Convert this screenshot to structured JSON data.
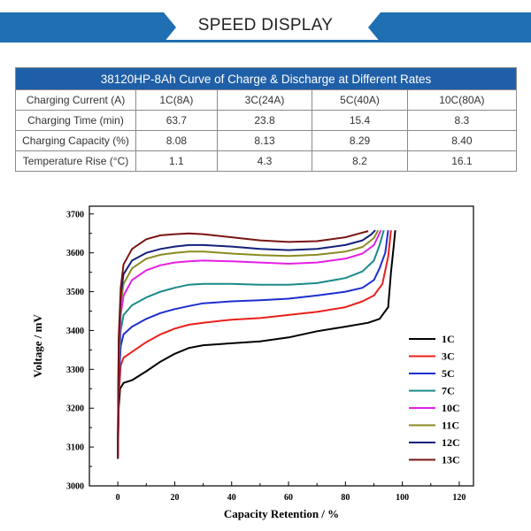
{
  "banner": {
    "title": "SPEED DISPLAY",
    "color": "#1f6fb2"
  },
  "table": {
    "title": "38120HP-8Ah Curve of Charge & Discharge at Different Rates",
    "header_color": "#1f5fa8",
    "rows": [
      {
        "label": "Charging Current (A)",
        "values": [
          "1C(8A)",
          "3C(24A)",
          "5C(40A)",
          "10C(80A)"
        ]
      },
      {
        "label": "Charging Time (min)",
        "values": [
          "63.7",
          "23.8",
          "15.4",
          "8.3"
        ]
      },
      {
        "label": "Charging Capacity (%)",
        "values": [
          "8.08",
          "8.13",
          "8.29",
          "8.40"
        ]
      },
      {
        "label": "Temperature Rise (°C)",
        "values": [
          "1.1",
          "4.3",
          "8.2",
          "16.1"
        ]
      }
    ]
  },
  "chart_data": {
    "type": "line",
    "xlabel": "Capacity Retention / %",
    "ylabel": "Voltage / mV",
    "xlim": [
      -10,
      125
    ],
    "ylim": [
      3000,
      3720
    ],
    "xticks": [
      0,
      20,
      40,
      60,
      80,
      100,
      120
    ],
    "yticks": [
      3000,
      3100,
      3200,
      3300,
      3400,
      3500,
      3600,
      3700
    ],
    "legend_position": "right",
    "series": [
      {
        "name": "1C",
        "color": "#000000",
        "points": [
          [
            0,
            3070
          ],
          [
            0.3,
            3200
          ],
          [
            0.8,
            3250
          ],
          [
            2,
            3265
          ],
          [
            5,
            3272
          ],
          [
            10,
            3295
          ],
          [
            15,
            3320
          ],
          [
            20,
            3340
          ],
          [
            25,
            3355
          ],
          [
            30,
            3362
          ],
          [
            40,
            3367
          ],
          [
            50,
            3372
          ],
          [
            60,
            3382
          ],
          [
            70,
            3398
          ],
          [
            80,
            3410
          ],
          [
            88,
            3420
          ],
          [
            92,
            3430
          ],
          [
            95,
            3460
          ],
          [
            96,
            3550
          ],
          [
            97,
            3620
          ],
          [
            97.5,
            3658
          ]
        ]
      },
      {
        "name": "3C",
        "color": "#e8201b",
        "points": [
          [
            0,
            3070
          ],
          [
            0.3,
            3230
          ],
          [
            1,
            3310
          ],
          [
            2,
            3330
          ],
          [
            5,
            3345
          ],
          [
            10,
            3370
          ],
          [
            15,
            3390
          ],
          [
            20,
            3405
          ],
          [
            25,
            3415
          ],
          [
            30,
            3420
          ],
          [
            40,
            3428
          ],
          [
            50,
            3432
          ],
          [
            60,
            3440
          ],
          [
            70,
            3448
          ],
          [
            80,
            3460
          ],
          [
            86,
            3475
          ],
          [
            90,
            3490
          ],
          [
            93,
            3520
          ],
          [
            95,
            3590
          ],
          [
            96,
            3658
          ]
        ]
      },
      {
        "name": "5C",
        "color": "#1d2ed0",
        "points": [
          [
            0,
            3070
          ],
          [
            0.3,
            3260
          ],
          [
            1,
            3360
          ],
          [
            2,
            3390
          ],
          [
            5,
            3410
          ],
          [
            10,
            3430
          ],
          [
            15,
            3445
          ],
          [
            20,
            3455
          ],
          [
            25,
            3463
          ],
          [
            30,
            3470
          ],
          [
            40,
            3475
          ],
          [
            50,
            3478
          ],
          [
            60,
            3482
          ],
          [
            70,
            3490
          ],
          [
            80,
            3500
          ],
          [
            86,
            3510
          ],
          [
            90,
            3530
          ],
          [
            92,
            3560
          ],
          [
            94,
            3600
          ],
          [
            95,
            3658
          ]
        ]
      },
      {
        "name": "7C",
        "color": "#1a8a8a",
        "points": [
          [
            0,
            3070
          ],
          [
            0.3,
            3290
          ],
          [
            1,
            3400
          ],
          [
            2,
            3440
          ],
          [
            5,
            3465
          ],
          [
            10,
            3485
          ],
          [
            15,
            3500
          ],
          [
            20,
            3510
          ],
          [
            25,
            3518
          ],
          [
            30,
            3520
          ],
          [
            40,
            3520
          ],
          [
            50,
            3518
          ],
          [
            60,
            3518
          ],
          [
            70,
            3522
          ],
          [
            80,
            3535
          ],
          [
            86,
            3552
          ],
          [
            90,
            3580
          ],
          [
            92,
            3620
          ],
          [
            93.5,
            3658
          ]
        ]
      },
      {
        "name": "10C",
        "color": "#e51fe5",
        "points": [
          [
            0,
            3070
          ],
          [
            0.3,
            3320
          ],
          [
            1,
            3440
          ],
          [
            2,
            3490
          ],
          [
            5,
            3530
          ],
          [
            10,
            3555
          ],
          [
            15,
            3568
          ],
          [
            20,
            3575
          ],
          [
            25,
            3578
          ],
          [
            30,
            3580
          ],
          [
            40,
            3578
          ],
          [
            50,
            3575
          ],
          [
            60,
            3572
          ],
          [
            70,
            3575
          ],
          [
            80,
            3585
          ],
          [
            86,
            3598
          ],
          [
            90,
            3620
          ],
          [
            92.5,
            3658
          ]
        ]
      },
      {
        "name": "11C",
        "color": "#8a8a22",
        "points": [
          [
            0,
            3070
          ],
          [
            0.3,
            3340
          ],
          [
            1,
            3470
          ],
          [
            2,
            3520
          ],
          [
            5,
            3560
          ],
          [
            10,
            3585
          ],
          [
            15,
            3595
          ],
          [
            20,
            3600
          ],
          [
            25,
            3603
          ],
          [
            30,
            3603
          ],
          [
            40,
            3598
          ],
          [
            50,
            3594
          ],
          [
            60,
            3592
          ],
          [
            70,
            3595
          ],
          [
            80,
            3603
          ],
          [
            86,
            3615
          ],
          [
            90,
            3638
          ],
          [
            91.5,
            3658
          ]
        ]
      },
      {
        "name": "12C",
        "color": "#12207a",
        "points": [
          [
            0,
            3070
          ],
          [
            0.3,
            3360
          ],
          [
            1,
            3490
          ],
          [
            2,
            3545
          ],
          [
            5,
            3580
          ],
          [
            10,
            3600
          ],
          [
            15,
            3610
          ],
          [
            20,
            3616
          ],
          [
            25,
            3620
          ],
          [
            30,
            3620
          ],
          [
            40,
            3616
          ],
          [
            50,
            3610
          ],
          [
            60,
            3607
          ],
          [
            70,
            3610
          ],
          [
            80,
            3620
          ],
          [
            86,
            3632
          ],
          [
            89,
            3647
          ],
          [
            90.5,
            3658
          ]
        ]
      },
      {
        "name": "13C",
        "color": "#7a1414",
        "points": [
          [
            0,
            3070
          ],
          [
            0.3,
            3380
          ],
          [
            1,
            3510
          ],
          [
            2,
            3570
          ],
          [
            5,
            3610
          ],
          [
            10,
            3635
          ],
          [
            15,
            3645
          ],
          [
            20,
            3648
          ],
          [
            25,
            3650
          ],
          [
            30,
            3648
          ],
          [
            40,
            3640
          ],
          [
            50,
            3632
          ],
          [
            60,
            3628
          ],
          [
            70,
            3630
          ],
          [
            80,
            3640
          ],
          [
            85,
            3650
          ],
          [
            88,
            3656
          ]
        ]
      }
    ]
  }
}
